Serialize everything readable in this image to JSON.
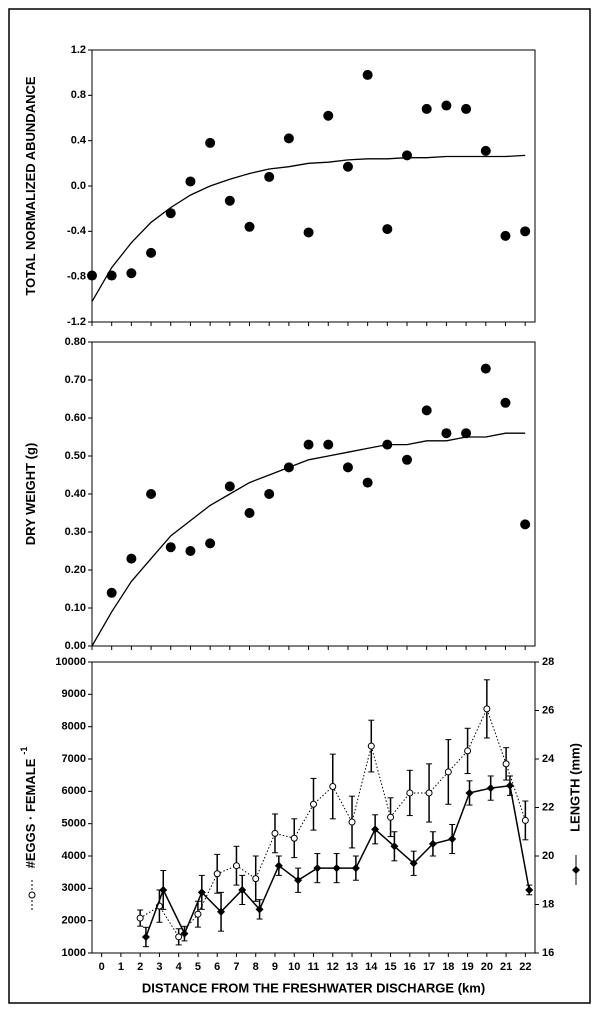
{
  "chart_data": [
    {
      "type": "scatter",
      "ylabel": "TOTAL NORMALIZED ABUNDANCE",
      "x": [
        0,
        1,
        2,
        3,
        4,
        5,
        6,
        7,
        8,
        9,
        10,
        11,
        12,
        13,
        14,
        15,
        16,
        17,
        18,
        19,
        20,
        21,
        22
      ],
      "values": [
        -0.79,
        -0.79,
        -0.77,
        -0.59,
        -0.24,
        0.04,
        0.38,
        -0.13,
        -0.36,
        0.08,
        0.42,
        -0.41,
        0.62,
        0.17,
        0.98,
        -0.38,
        0.27,
        0.68,
        0.71,
        0.68,
        0.31,
        -0.44,
        -0.4
      ],
      "fit": {
        "x": [
          0,
          1,
          2,
          3,
          4,
          5,
          6,
          7,
          8,
          9,
          10,
          11,
          12,
          13,
          14,
          15,
          16,
          17,
          18,
          19,
          20,
          21,
          22
        ],
        "values": [
          -1.02,
          -0.72,
          -0.5,
          -0.32,
          -0.19,
          -0.08,
          0.0,
          0.06,
          0.11,
          0.15,
          0.17,
          0.2,
          0.21,
          0.23,
          0.24,
          0.24,
          0.25,
          0.25,
          0.26,
          0.26,
          0.26,
          0.26,
          0.27
        ]
      },
      "xlim": [
        0,
        22.5
      ],
      "xticks": [
        0,
        1,
        2,
        3,
        4,
        5,
        6,
        7,
        8,
        9,
        10,
        11,
        12,
        13,
        14,
        15,
        16,
        17,
        18,
        19,
        20,
        21,
        22
      ],
      "ylim": [
        -1.2,
        1.2
      ],
      "yticks": [
        -1.2,
        -0.8,
        -0.4,
        {
          "value": 0,
          "label": "0.0"
        },
        0.4,
        0.8,
        1.2
      ],
      "color": "#000000"
    },
    {
      "type": "scatter",
      "ylabel": "DRY WEIGHT (g)",
      "x": [
        1,
        2,
        3,
        4,
        5,
        6,
        7,
        8,
        9,
        10,
        11,
        12,
        13,
        14,
        15,
        16,
        17,
        18,
        19,
        20,
        21,
        22
      ],
      "values": [
        0.14,
        0.23,
        0.4,
        0.26,
        0.25,
        0.27,
        0.42,
        0.35,
        0.4,
        0.47,
        0.53,
        0.53,
        0.47,
        0.43,
        0.53,
        0.49,
        0.62,
        0.56,
        0.56,
        0.73,
        0.64,
        0.32
      ],
      "fit": {
        "x": [
          0,
          1,
          2,
          3,
          4,
          5,
          6,
          7,
          8,
          9,
          10,
          11,
          12,
          13,
          14,
          15,
          16,
          17,
          18,
          19,
          20,
          21,
          22
        ],
        "values": [
          0,
          0.09,
          0.17,
          0.23,
          0.29,
          0.33,
          0.37,
          0.4,
          0.43,
          0.45,
          0.47,
          0.49,
          0.5,
          0.51,
          0.52,
          0.53,
          0.53,
          0.54,
          0.54,
          0.55,
          0.55,
          0.56,
          0.56
        ]
      },
      "xlim": [
        0,
        22.5
      ],
      "xticks": [
        0,
        1,
        2,
        3,
        4,
        5,
        6,
        7,
        8,
        9,
        10,
        11,
        12,
        13,
        14,
        15,
        16,
        17,
        18,
        19,
        20,
        21,
        22
      ],
      "ylim": [
        0,
        0.8
      ],
      "yticks": [
        {
          "value": 0,
          "label": "0.00"
        },
        {
          "value": 0.1,
          "label": "0.10"
        },
        {
          "value": 0.2,
          "label": "0.20"
        },
        {
          "value": 0.3,
          "label": "0.30"
        },
        {
          "value": 0.4,
          "label": "0.40"
        },
        {
          "value": 0.5,
          "label": "0.50"
        },
        {
          "value": 0.6,
          "label": "0.60"
        },
        {
          "value": 0.7,
          "label": "0.70"
        },
        {
          "value": 0.8,
          "label": "0.80"
        }
      ],
      "color": "#000000"
    },
    {
      "type": "line",
      "ylabel": "#EGGS · FEMALE",
      "ylabel_sup": "-1",
      "y2label": "LENGTH (mm)",
      "xlabel": "DISTANCE FROM THE FRESHWATER DISCHARGE (km)",
      "series": [
        {
          "color": "#000000",
          "marker": "open-circle",
          "dash": true,
          "x": [
            2,
            3,
            4,
            5,
            6,
            7,
            8,
            9,
            10,
            11,
            12,
            13,
            14,
            15,
            16,
            17,
            18,
            19,
            20,
            21,
            22
          ],
          "values": [
            2080,
            2450,
            1500,
            2200,
            3450,
            3700,
            3300,
            4700,
            4550,
            5600,
            6150,
            5050,
            7400,
            5200,
            5950,
            5950,
            6600,
            7250,
            8550,
            6850,
            5100
          ],
          "errors": [
            250,
            500,
            250,
            400,
            600,
            600,
            700,
            600,
            600,
            800,
            1000,
            800,
            800,
            600,
            700,
            900,
            1000,
            700,
            900,
            500,
            600
          ]
        },
        {
          "color": "#000000",
          "marker": "diamond",
          "axis": "y2",
          "x": [
            2.3,
            3.2,
            4.3,
            5.2,
            6.2,
            7.3,
            8.2,
            9.2,
            10.2,
            11.2,
            12.2,
            13.2,
            14.2,
            15.2,
            16.2,
            17.2,
            18.2,
            19.1,
            20.2,
            21.2,
            22.2
          ],
          "values": [
            16.66,
            18.6,
            16.8,
            18.5,
            17.7,
            18.6,
            17.8,
            19.6,
            19.0,
            19.5,
            19.5,
            19.5,
            21.1,
            20.4,
            19.7,
            20.5,
            20.7,
            22.6,
            22.8,
            22.9,
            18.6
          ],
          "errors": [
            0.4,
            0.8,
            0.3,
            0.7,
            0.8,
            0.6,
            0.4,
            0.4,
            0.5,
            0.6,
            0.6,
            0.5,
            0.6,
            0.6,
            0.5,
            0.5,
            0.6,
            0.5,
            0.5,
            0.4,
            0.2
          ]
        }
      ],
      "xlim": [
        -0.5,
        22.5
      ],
      "xticks": [
        0,
        1,
        2,
        3,
        4,
        5,
        6,
        7,
        8,
        9,
        10,
        11,
        12,
        13,
        14,
        15,
        16,
        17,
        18,
        19,
        20,
        21,
        22
      ],
      "ylim": [
        1000,
        10000
      ],
      "yticks": [
        1000,
        2000,
        3000,
        4000,
        5000,
        6000,
        7000,
        8000,
        9000,
        10000
      ],
      "y2lim": [
        16,
        28
      ],
      "y2ticks": [
        16,
        18,
        20,
        22,
        24,
        26,
        28
      ]
    }
  ]
}
